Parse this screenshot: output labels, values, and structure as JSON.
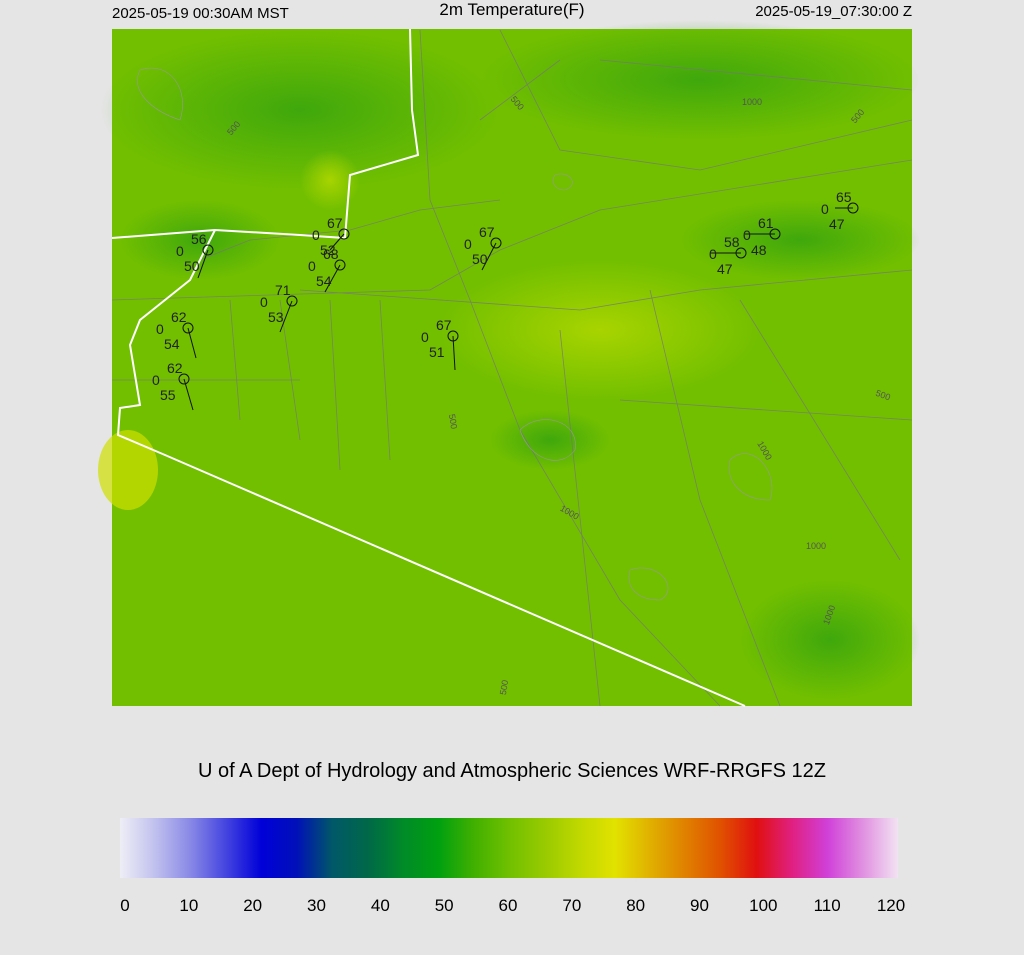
{
  "header": {
    "local_time": "2025-05-19 00:30AM MST",
    "title": "2m Temperature(F)",
    "utc_time": "2025-05-19_07:30:00 Z"
  },
  "stations": [
    {
      "temperature": 56,
      "cloud": 0,
      "dewpoint": 50
    },
    {
      "temperature": 67,
      "cloud": 0,
      "dewpoint": 52
    },
    {
      "temperature": 68,
      "cloud": 0,
      "dewpoint": 54
    },
    {
      "temperature": 71,
      "cloud": 0,
      "dewpoint": 53
    },
    {
      "temperature": 62,
      "cloud": 0,
      "dewpoint": 54
    },
    {
      "temperature": 62,
      "cloud": 0,
      "dewpoint": 55
    },
    {
      "temperature": 67,
      "cloud": 0,
      "dewpoint": 50
    },
    {
      "temperature": 67,
      "cloud": 0,
      "dewpoint": 51
    },
    {
      "temperature": 58,
      "cloud": 0,
      "dewpoint": 47
    },
    {
      "temperature": 61,
      "cloud": 0,
      "dewpoint": 48
    },
    {
      "temperature": 65,
      "cloud": 0,
      "dewpoint": 47
    }
  ],
  "contour_labels": [
    500,
    500,
    500,
    500,
    500,
    500,
    1000,
    1000,
    1000,
    1000,
    1000
  ],
  "credit": "U of A Dept of Hydrology and Atmospheric Sciences WRF-RRGFS 12Z",
  "colorbar": {
    "xlim": [
      0,
      120
    ],
    "xticks": [
      0,
      10,
      20,
      30,
      40,
      50,
      60,
      70,
      80,
      90,
      100,
      110,
      120
    ],
    "colors": [
      "#eeeef6",
      "#c0c0ee",
      "#8888e6",
      "#4444e0",
      "#0000d8",
      "#0010b8",
      "#005868",
      "#006848",
      "#008a28",
      "#00a010",
      "#40b000",
      "#70c000",
      "#98ca00",
      "#c0d800",
      "#e2e200",
      "#e0b000",
      "#e08000",
      "#e05000",
      "#e01010",
      "#e02080",
      "#d040d8",
      "#e090e0",
      "#f2e2f2"
    ]
  }
}
